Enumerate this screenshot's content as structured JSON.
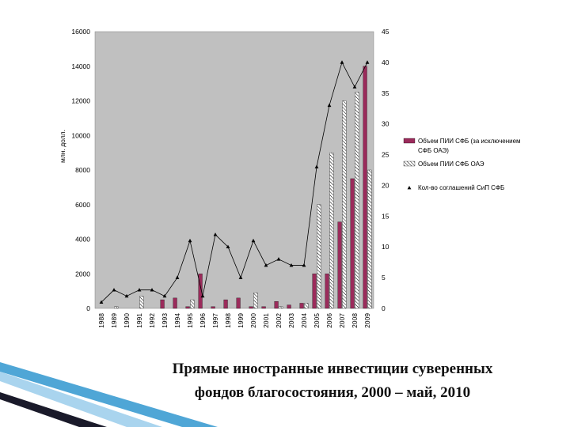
{
  "caption": {
    "line1": "Прямые иностранные инвестиции суверенных",
    "line2": "фондов благосостояния, 2000 – май, 2010"
  },
  "colors": {
    "plot_bg": "#c0c0c0",
    "bar_solid": "#9b2b5b",
    "bar_hatched": "#ffffff",
    "line": "#000000",
    "deco_blue": "#4fa6d6"
  },
  "chart_data": {
    "type": "bar",
    "ylabel": "млн. долл.",
    "ylim": [
      0,
      16000
    ],
    "y2lim": [
      0,
      45
    ],
    "yticks": [
      "0",
      "2000",
      "4000",
      "6000",
      "8000",
      "10000",
      "12000",
      "14000",
      "16000"
    ],
    "y2ticks": [
      "0",
      "5",
      "10",
      "15",
      "20",
      "25",
      "30",
      "35",
      "40",
      "45"
    ],
    "categories": [
      "1988",
      "1989",
      "1990",
      "1991",
      "1992",
      "1993",
      "1994",
      "1995",
      "1996",
      "1997",
      "1998",
      "1999",
      "2000",
      "2001",
      "2002",
      "2003",
      "2004",
      "2005",
      "2006",
      "2007",
      "2008",
      "2009"
    ],
    "series": [
      {
        "name": "Объем ПИИ СФБ (за исключением СФБ ОАЭ)",
        "type": "bar",
        "style": "solid",
        "values": [
          0,
          0,
          0,
          0,
          0,
          500,
          600,
          100,
          2000,
          100,
          500,
          600,
          100,
          100,
          400,
          200,
          300,
          2000,
          2000,
          5000,
          7500,
          14000
        ]
      },
      {
        "name": "Объем ПИИ СФБ ОАЭ",
        "type": "bar",
        "style": "hatched",
        "values": [
          0,
          100,
          0,
          700,
          0,
          0,
          0,
          500,
          0,
          0,
          0,
          0,
          900,
          0,
          100,
          0,
          300,
          6000,
          9000,
          12000,
          12500,
          8000
        ]
      },
      {
        "name": "Кол-во соглашений СиП СФБ",
        "type": "line",
        "axis": "right",
        "values": [
          1,
          3,
          2,
          3,
          3,
          2,
          5,
          11,
          2,
          12,
          10,
          5,
          11,
          7,
          8,
          7,
          7,
          23,
          33,
          40,
          36,
          40
        ]
      }
    ],
    "legend_position": "right",
    "grid": false
  }
}
